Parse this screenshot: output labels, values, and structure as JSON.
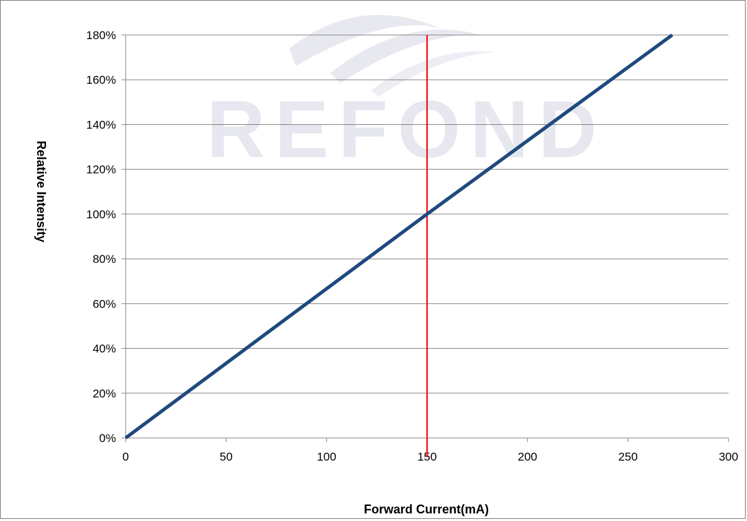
{
  "watermark": {
    "text": "REFOND",
    "color": "#e6e7ef"
  },
  "chart_data": {
    "type": "line",
    "xlabel": "Forward Current(mA)",
    "ylabel": "Relative Intensity",
    "xlim": [
      0,
      300
    ],
    "ylim": [
      0,
      1.8
    ],
    "x_ticks": [
      "0",
      "50",
      "100",
      "150",
      "200",
      "250",
      "300"
    ],
    "y_ticks": [
      "0%",
      "20%",
      "40%",
      "60%",
      "80%",
      "100%",
      "120%",
      "140%",
      "160%",
      "180%"
    ],
    "grid": {
      "horizontal": true,
      "vertical": false
    },
    "series": [
      {
        "color": "#1f497d",
        "x": [
          0,
          150,
          272
        ],
        "y": [
          0,
          1.0,
          1.8
        ]
      }
    ],
    "reference_lines": [
      {
        "orientation": "vertical",
        "x": 150,
        "color": "#ff0000"
      }
    ]
  }
}
